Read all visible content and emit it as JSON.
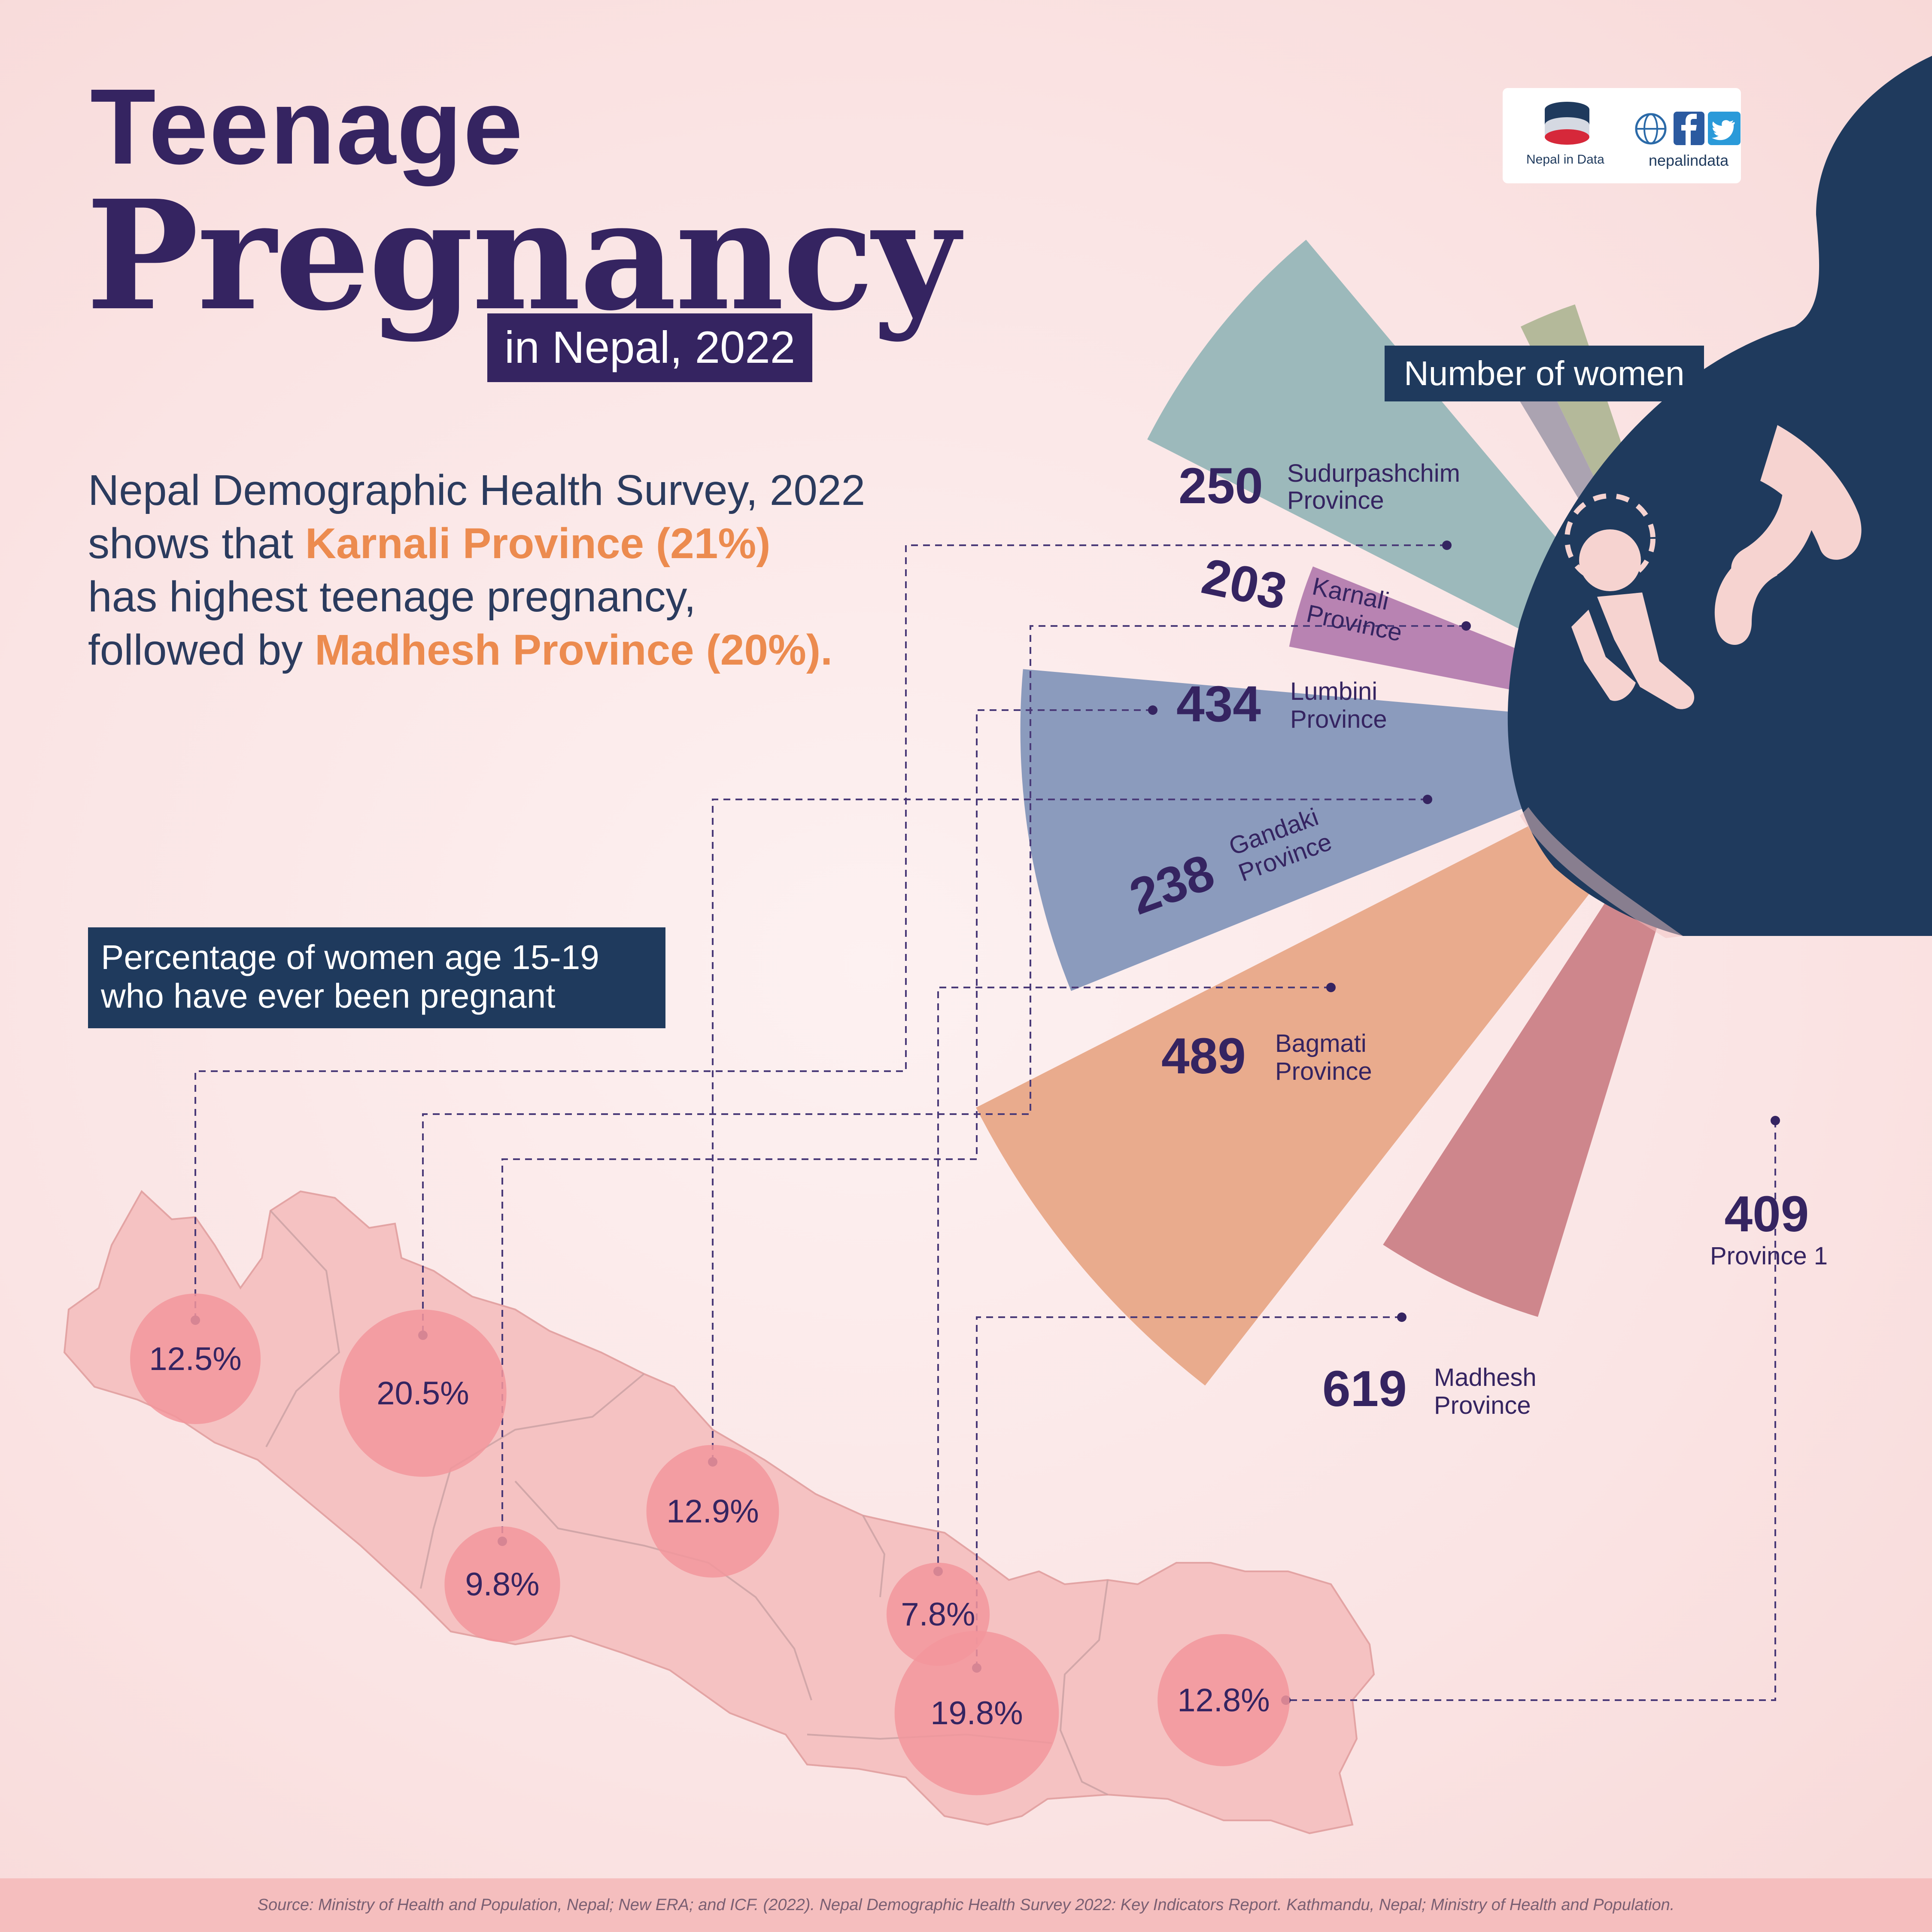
{
  "title": {
    "line1": "Teenage",
    "line2": "Pregnancy",
    "line3": "in Nepal, 2022"
  },
  "intro": {
    "p1": "Nepal Demographic Health Survey, 2022",
    "p2": "shows that ",
    "hl1": "Karnali Province (21%)",
    "p3": "has highest teenage pregnancy,",
    "p4": "followed by ",
    "hl2": "Madhesh Province (20%)."
  },
  "labels": {
    "number_of_women": "Number of women",
    "percentage_line1": "Percentage of women age 15-19",
    "percentage_line2": "who have ever been pregnant"
  },
  "logo": {
    "name": "Nepal in Data",
    "site": "nepalindata",
    "icons": [
      "database-icon",
      "globe-icon",
      "facebook-icon",
      "twitter-icon"
    ]
  },
  "source": "Source: Ministry of Health and Population, Nepal; New ERA; and ICF. (2022). Nepal Demographic Health Survey 2022: Key Indicators Report. Kathmandu, Nepal; Ministry of Health and Population.",
  "colors": {
    "title": "#352461",
    "accent": "#ec8b4f",
    "navy": "#1f3a5d",
    "bubble": "#f2979c",
    "map": "#f5c2c2",
    "sudurpashchim": "#b4b99a",
    "karnali": "#aba3b1",
    "lumbini": "#9cb9bb",
    "gandaki": "#b883b2",
    "bagmati": "#8b9bbd",
    "madhesh": "#e9ab8d",
    "province1": "#ce868c"
  },
  "chart_data": [
    {
      "type": "bar",
      "title": "Number of women",
      "categories": [
        "Sudurpashchim Province",
        "Karnali Province",
        "Lumbini Province",
        "Gandaki Province",
        "Bagmati Province",
        "Madhesh Province",
        "Province 1"
      ],
      "values": [
        250,
        203,
        434,
        238,
        489,
        619,
        409
      ]
    },
    {
      "type": "scatter",
      "title": "Percentage of women age 15-19 who have ever been pregnant",
      "categories": [
        "Sudurpashchim Province",
        "Karnali Province",
        "Lumbini Province",
        "Gandaki Province",
        "Bagmati Province",
        "Madhesh Province",
        "Province 1"
      ],
      "values": [
        12.5,
        20.5,
        9.8,
        12.9,
        7.8,
        19.8,
        12.8
      ],
      "value_labels": [
        "12.5%",
        "20.5%",
        "9.8%",
        "12.9%",
        "7.8%",
        "19.8%",
        "12.8%"
      ]
    }
  ],
  "radial": [
    {
      "num": "250",
      "name1": "Sudurpashchim",
      "name2": "Province"
    },
    {
      "num": "203",
      "name1": "Karnali",
      "name2": "Province"
    },
    {
      "num": "434",
      "name1": "Lumbini",
      "name2": "Province"
    },
    {
      "num": "238",
      "name1": "Gandaki",
      "name2": "Province"
    },
    {
      "num": "489",
      "name1": "Bagmati",
      "name2": "Province"
    },
    {
      "num": "619",
      "name1": "Madhesh",
      "name2": "Province"
    },
    {
      "num": "409",
      "name1": "Province 1",
      "name2": ""
    }
  ]
}
